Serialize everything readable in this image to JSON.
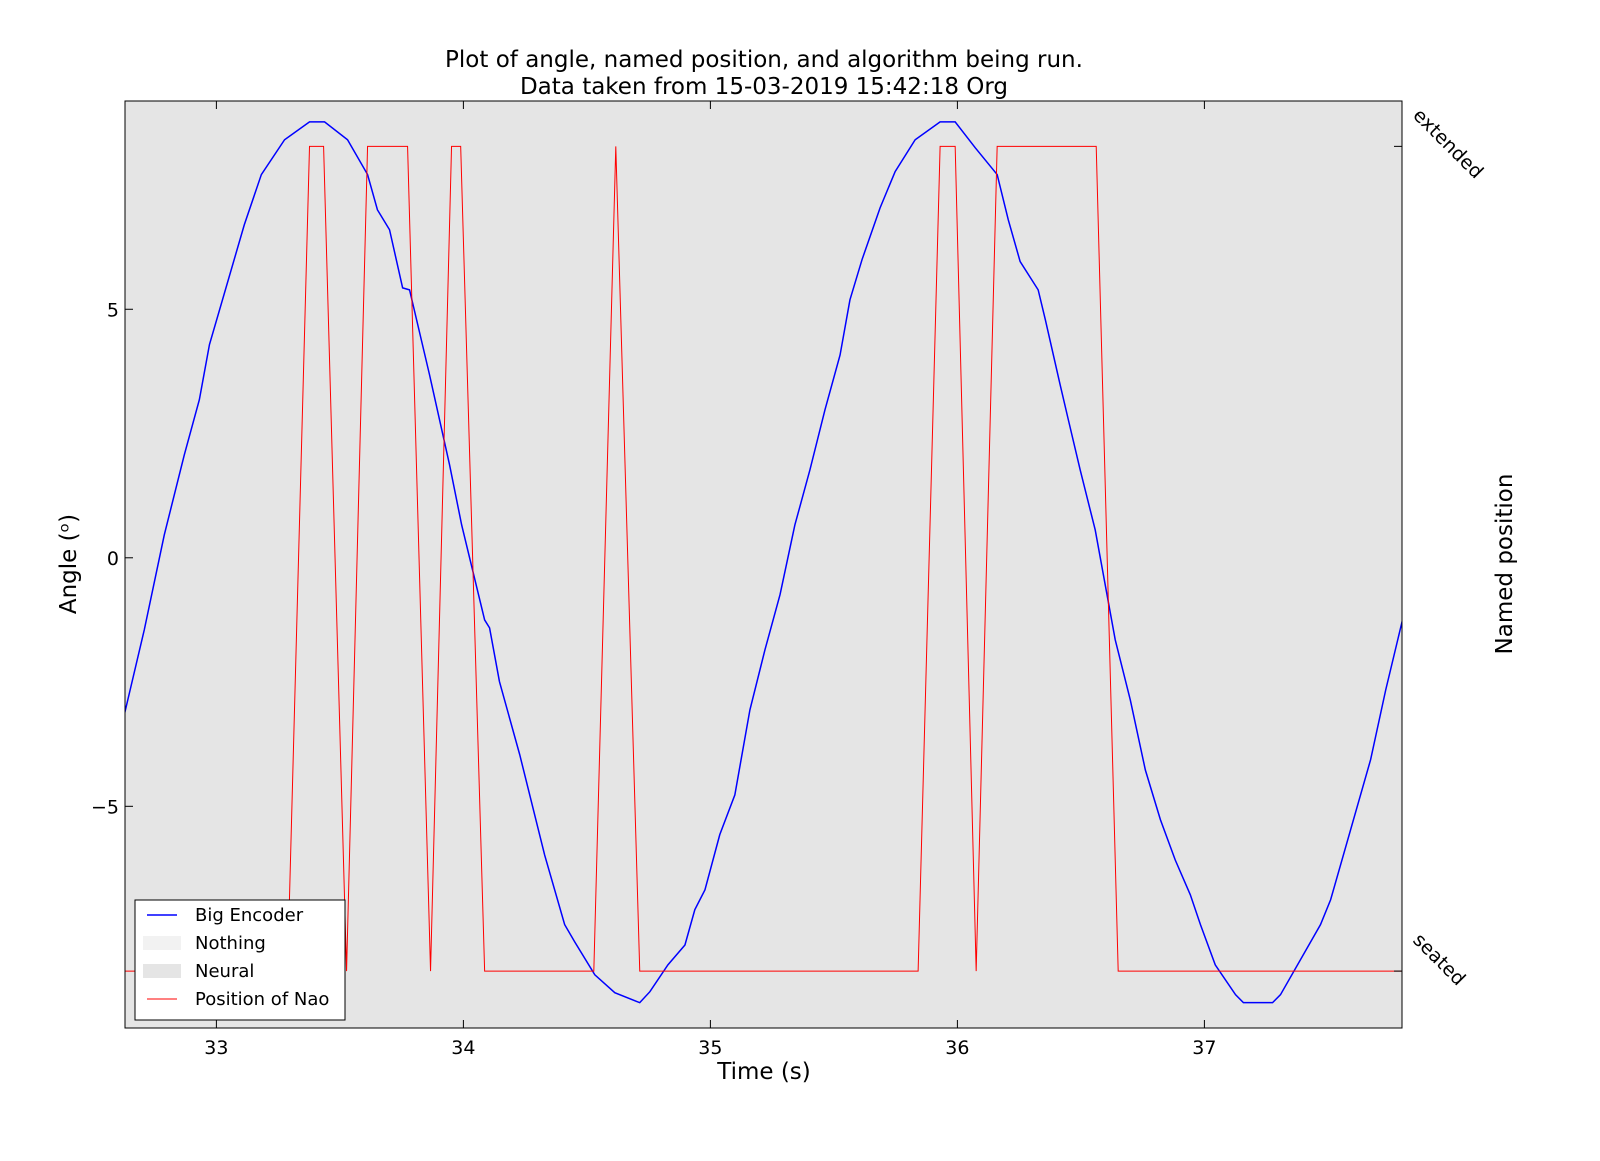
{
  "chart_data": {
    "type": "line",
    "title": "Plot of angle, named position, and algorithm being run.",
    "subtitle": "Data taken from 15-03-2019 15:42:18 Org",
    "xlabel": "Time (s)",
    "ylabel": "Angle (ᵒ)",
    "y2label": "Named position",
    "xlim": [
      32.63,
      37.8
    ],
    "ylim": [
      -9.46,
      9.19
    ],
    "y2lim": [
      -0.069,
      1.055
    ],
    "xticks": [
      33,
      34,
      35,
      36,
      37
    ],
    "yticks": [
      {
        "value": -5,
        "label": "−5"
      },
      0,
      5
    ],
    "y2ticks": [
      {
        "value": 0,
        "label": "seated"
      },
      {
        "value": 1,
        "label": "extended"
      }
    ],
    "legend": "lower left",
    "series": [
      {
        "name": "Big Encoder",
        "kind": "line",
        "color": "#0000ff",
        "x": [
          32.627,
          32.708,
          32.789,
          32.87,
          32.931,
          32.972,
          33.113,
          33.182,
          33.276,
          33.377,
          33.438,
          33.531,
          33.612,
          33.652,
          33.701,
          33.754,
          33.782,
          33.863,
          33.944,
          33.993,
          34.086,
          34.106,
          34.146,
          34.228,
          34.329,
          34.41,
          34.451,
          34.532,
          34.613,
          34.714,
          34.755,
          34.828,
          34.897,
          34.937,
          34.978,
          35.038,
          35.099,
          35.16,
          35.221,
          35.282,
          35.342,
          35.403,
          35.464,
          35.525,
          35.565,
          35.614,
          35.687,
          35.748,
          35.829,
          35.93,
          35.991,
          36.072,
          36.161,
          36.206,
          36.254,
          36.327,
          36.356,
          36.416,
          36.449,
          36.497,
          36.558,
          36.639,
          36.7,
          36.761,
          36.822,
          36.882,
          36.943,
          36.984,
          37.044,
          37.126,
          37.158,
          37.276,
          37.308,
          37.47,
          37.511,
          37.673,
          37.734,
          37.802
        ],
        "values": [
          -3.16,
          -1.45,
          0.46,
          2.07,
          3.18,
          4.29,
          6.7,
          7.71,
          8.41,
          8.77,
          8.77,
          8.41,
          7.71,
          7.0,
          6.6,
          5.43,
          5.39,
          3.68,
          1.87,
          0.66,
          -1.25,
          -1.41,
          -2.49,
          -3.96,
          -5.98,
          -7.38,
          -7.73,
          -8.39,
          -8.75,
          -8.95,
          -8.73,
          -8.19,
          -7.79,
          -7.08,
          -6.68,
          -5.57,
          -4.77,
          -3.06,
          -1.85,
          -0.74,
          0.66,
          1.77,
          2.98,
          4.08,
          5.19,
          6.0,
          7.04,
          7.77,
          8.41,
          8.77,
          8.77,
          8.25,
          7.71,
          6.8,
          5.96,
          5.39,
          4.79,
          3.48,
          2.78,
          1.77,
          0.56,
          -1.65,
          -2.86,
          -4.27,
          -5.27,
          -6.08,
          -6.78,
          -7.38,
          -8.19,
          -8.79,
          -8.95,
          -8.95,
          -8.79,
          -7.38,
          -6.88,
          -4.06,
          -2.66,
          -1.25
        ]
      },
      {
        "name": "Nothing",
        "kind": "span",
        "color": "#f2f2f2",
        "ranges": []
      },
      {
        "name": "Neural",
        "kind": "span",
        "color": "#e5e5e5",
        "ranges": [
          [
            32.63,
            37.8
          ]
        ]
      },
      {
        "name": "Position of Nao",
        "kind": "line",
        "color": "#ff0000",
        "axis": "y2",
        "x": [
          32.627,
          33.288,
          33.377,
          33.434,
          33.527,
          33.612,
          33.774,
          33.867,
          33.952,
          33.989,
          34.086,
          34.528,
          34.617,
          34.714,
          35.841,
          35.93,
          35.991,
          36.076,
          36.161,
          36.562,
          36.651,
          37.802
        ],
        "values": [
          0,
          0,
          1,
          1,
          0,
          1,
          1,
          0,
          1,
          1,
          0,
          0,
          1,
          0,
          0,
          1,
          1,
          0,
          1,
          1,
          0,
          0
        ]
      }
    ]
  }
}
